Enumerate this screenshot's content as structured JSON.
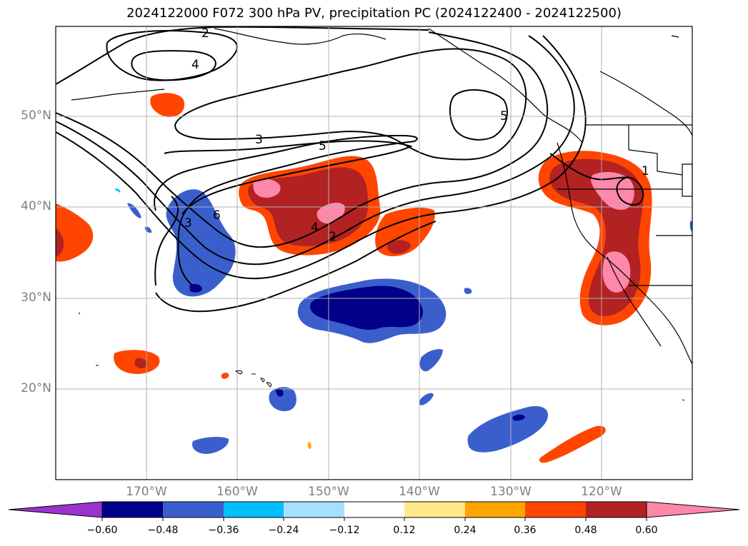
{
  "title": "2024122000 F072 300 hPa PV, precipitation PC (2024122400 - 2024122500)",
  "map": {
    "lat_labels": [
      "50°N",
      "40°N",
      "30°N",
      "20°N"
    ],
    "lon_labels": [
      "170°W",
      "160°W",
      "150°W",
      "140°W",
      "130°W",
      "120°W"
    ],
    "pv_contour_labels": [
      "2",
      "4",
      "3",
      "5",
      "5",
      "6",
      "3",
      "4",
      "2",
      "1"
    ]
  },
  "colorbar": {
    "ticks": [
      "−0.60",
      "−0.48",
      "−0.36",
      "−0.24",
      "−0.12",
      "0.12",
      "0.24",
      "0.36",
      "0.48",
      "0.60"
    ],
    "colors": [
      "#9933cc",
      "#000088",
      "#3a5fcd",
      "#00bfff",
      "#a6e0ff",
      "#ffffff",
      "#ffe88a",
      "#ffa500",
      "#ff4500",
      "#b22222",
      "#ff88aa"
    ]
  },
  "colors": {
    "grid": "#b0b0b0",
    "coast": "#000000",
    "neg_deep": "#000088",
    "neg_mid": "#3a5fcd",
    "neg_light": "#00bfff",
    "pos_light": "#ffe88a",
    "pos_mid": "#ff4500",
    "pos_strong": "#b22222",
    "pos_max": "#ff88aa"
  }
}
